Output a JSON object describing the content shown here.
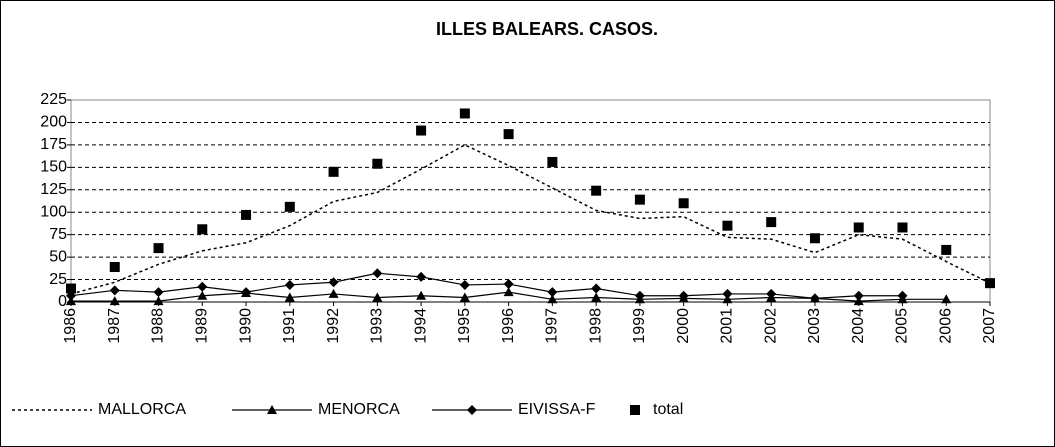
{
  "chart_data": {
    "type": "line",
    "title": "ILLES BALEARS. CASOS.",
    "categories": [
      "1986",
      "1987",
      "1988",
      "1989",
      "1990",
      "1991",
      "1992",
      "1993",
      "1994",
      "1995",
      "1996",
      "1997",
      "1998",
      "1999",
      "2000",
      "2001",
      "2002",
      "2003",
      "2004",
      "2005",
      "2006",
      "2007"
    ],
    "series": [
      {
        "name": "MALLORCA",
        "color": "#000000",
        "line": "dotted",
        "marker": "none",
        "values": [
          9,
          22,
          42,
          57,
          66,
          85,
          112,
          122,
          148,
          175,
          152,
          127,
          102,
          93,
          95,
          72,
          70,
          55,
          75,
          70,
          45,
          21
        ]
      },
      {
        "name": "MENORCA",
        "color": "#000000",
        "line": "solid",
        "marker": "triangle",
        "values": [
          1,
          1,
          1,
          7,
          10,
          5,
          9,
          5,
          7,
          5,
          11,
          3,
          5,
          3,
          4,
          3,
          5,
          4,
          1,
          3,
          3,
          null
        ]
      },
      {
        "name": "EIVISSA-F",
        "color": "#000000",
        "line": "solid",
        "marker": "diamond",
        "values": [
          7,
          13,
          11,
          17,
          11,
          19,
          22,
          32,
          28,
          19,
          20,
          11,
          15,
          7,
          7,
          9,
          9,
          4,
          7,
          7,
          null,
          null
        ]
      },
      {
        "name": "total",
        "color": "#000000",
        "line": "none",
        "marker": "square",
        "values": [
          15,
          39,
          60,
          81,
          97,
          106,
          145,
          154,
          191,
          210,
          187,
          156,
          124,
          114,
          110,
          85,
          89,
          71,
          83,
          83,
          58,
          21
        ]
      }
    ],
    "ylim": [
      0,
      225
    ],
    "yticks": [
      0,
      25,
      50,
      75,
      100,
      125,
      150,
      175,
      200,
      225
    ],
    "grid": true,
    "legend": "bottom"
  }
}
